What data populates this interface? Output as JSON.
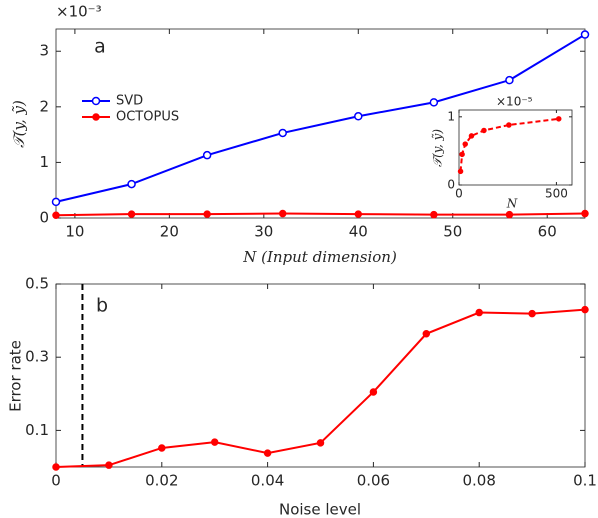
{
  "chart_data": [
    {
      "type": "line",
      "panel_label": "a",
      "exponent": "×10⁻³",
      "x_label": "N (Input dimension)",
      "y_label": "𝒯(y, ỹ)",
      "x": [
        8,
        16,
        24,
        32,
        40,
        48,
        56,
        64
      ],
      "series": [
        {
          "name": "SVD",
          "color": "#0000ff",
          "marker": "open",
          "linestyle": "solid",
          "values": [
            0.29,
            0.61,
            1.13,
            1.53,
            1.83,
            2.08,
            2.48,
            3.3
          ]
        },
        {
          "name": "OCTOPUS",
          "color": "#ff0000",
          "marker": "filled",
          "linestyle": "solid",
          "values": [
            0.05,
            0.07,
            0.07,
            0.08,
            0.07,
            0.06,
            0.06,
            0.08
          ]
        }
      ],
      "xlim": [
        8,
        64
      ],
      "xticks": [
        10,
        20,
        30,
        40,
        50,
        60
      ],
      "ylim": [
        0,
        3.4
      ],
      "yticks": [
        0,
        1,
        2,
        3
      ],
      "legend": "upper left"
    },
    {
      "type": "line",
      "exponent": "×10⁻⁵",
      "x_label": "N",
      "y_label": "𝒯(y, ỹ)",
      "x": [
        8,
        16,
        32,
        64,
        128,
        256,
        512
      ],
      "series": [
        {
          "color": "#ff0000",
          "marker": "filled",
          "linestyle": "dashed",
          "values": [
            0.2,
            0.45,
            0.6,
            0.72,
            0.8,
            0.88,
            0.97
          ]
        }
      ],
      "xlim": [
        0,
        580
      ],
      "xticks": [
        0,
        500
      ],
      "ylim": [
        0,
        1.1
      ],
      "yticks": [
        0,
        1
      ]
    },
    {
      "type": "line",
      "panel_label": "b",
      "x_label": "Noise level",
      "y_label": "Error rate",
      "x": [
        0,
        0.01,
        0.02,
        0.03,
        0.04,
        0.05,
        0.06,
        0.07,
        0.08,
        0.09,
        0.1
      ],
      "series": [
        {
          "color": "#ff0000",
          "marker": "filled",
          "linestyle": "solid",
          "values": [
            0,
            0.005,
            0.052,
            0.068,
            0.038,
            0.066,
            0.205,
            0.364,
            0.422,
            0.419,
            0.43
          ]
        }
      ],
      "xlim": [
        0,
        0.1
      ],
      "xticks": [
        0,
        0.02,
        0.04,
        0.06,
        0.08,
        0.1
      ],
      "ylim": [
        0,
        0.5
      ],
      "yticks": [
        0.1,
        0.3,
        0.5
      ],
      "vline": 0.005
    }
  ]
}
